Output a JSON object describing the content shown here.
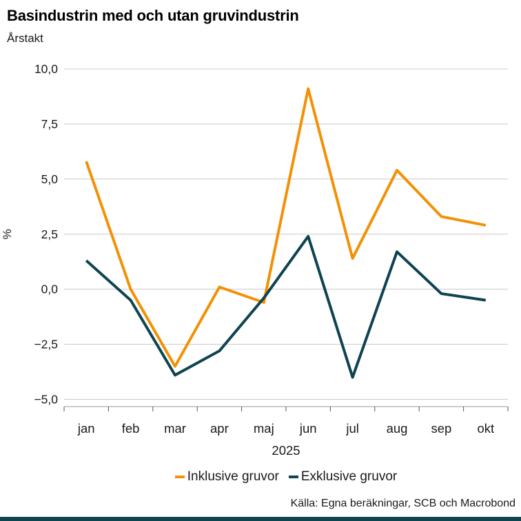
{
  "title": "Basindustrin med och utan gruvindustrin",
  "subtitle": "Årstakt",
  "legend": [
    {
      "label": "Inklusive gruvor",
      "color": "#F29105"
    },
    {
      "label": "Exklusive gruvor",
      "color": "#0E4351"
    }
  ],
  "footer": {
    "source": "Källa: Egna beräkningar, SCB och Macrobond"
  },
  "colors": {
    "accent_orange": "#F29105",
    "accent_teal": "#0E4351",
    "gridline": "#C8C8C8",
    "axis_baseline": "#9A9A9A",
    "tick": "#555555",
    "bottom_bar": "#0E4351"
  },
  "chart_data": {
    "type": "line",
    "title": "Basindustrin med och utan gruvindustrin",
    "subtitle": "Årstakt",
    "categories": [
      "jan",
      "feb",
      "mar",
      "apr",
      "maj",
      "jun",
      "jul",
      "aug",
      "sep",
      "okt"
    ],
    "x_year_label": "2025",
    "xlabel": "",
    "ylabel": "%",
    "ylim": [
      -5.0,
      10.0
    ],
    "ytick_step": 2.5,
    "ytick_labels": [
      "10,0",
      "7,5",
      "5,0",
      "2,5",
      "0,0",
      "−2,5",
      "−5,0"
    ],
    "grid": true,
    "legend_position": "bottom",
    "series": [
      {
        "name": "Inklusive gruvor",
        "color": "#F29105",
        "values": [
          5.8,
          0.0,
          -3.5,
          0.1,
          -0.6,
          9.1,
          1.4,
          5.4,
          3.3,
          2.9
        ]
      },
      {
        "name": "Exklusive gruvor",
        "color": "#0E4351",
        "values": [
          1.3,
          -0.5,
          -3.9,
          -2.8,
          -0.4,
          2.4,
          -4.0,
          1.7,
          -0.2,
          -0.5
        ]
      }
    ]
  }
}
